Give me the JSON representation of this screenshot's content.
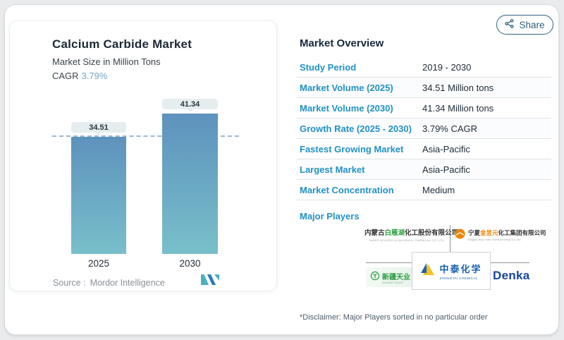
{
  "chart_card": {
    "title": "Calcium Carbide Market",
    "subtitle": "Market Size in Million Tons",
    "cagr_label": "CAGR",
    "cagr_value": "3.79%",
    "source_label": "Source :",
    "source_value": "Mordor Intelligence"
  },
  "chart_data": {
    "type": "bar",
    "categories": [
      "2025",
      "2030"
    ],
    "values": [
      34.51,
      41.34
    ],
    "title": "Calcium Carbide Market",
    "subtitle": "Market Size in Million Tons",
    "cagr": "3.79%",
    "ylim": [
      0,
      45
    ],
    "grid": false,
    "data_labels": [
      "34.51",
      "41.34"
    ],
    "annotation": "dashed reference line at 2025 value (34.51)",
    "bar_gradient_top": "#5d92bd",
    "bar_gradient_bottom": "#79bfca"
  },
  "share": {
    "label": "Share"
  },
  "overview": {
    "title": "Market Overview",
    "rows": [
      {
        "label": "Study Period",
        "value": "2019 - 2030"
      },
      {
        "label": "Market Volume (2025)",
        "value": "34.51 Million tons"
      },
      {
        "label": "Market Volume (2030)",
        "value": "41.34 Million tons"
      },
      {
        "label": "Growth Rate (2025 - 2030)",
        "value": "3.79% CAGR"
      },
      {
        "label": "Fastest Growing Market",
        "value": "Asia-Pacific"
      },
      {
        "label": "Largest Market",
        "value": "Asia-Pacific"
      },
      {
        "label": "Market Concentration",
        "value": "Medium"
      }
    ],
    "major_players_label": "Major Players",
    "disclaimer": "*Disclaimer: Major Players sorted in no particular order"
  },
  "players": {
    "baiyanhu": {
      "prefix": "内蒙古",
      "highlight": "白雁湖",
      "suffix": "化工股份有限公司",
      "en": "INNER MONGOLIA BAIYANHU CHEMICAL CO.,LTD"
    },
    "jinyuyuan": {
      "prefix": "宁夏",
      "highlight": "金昱元",
      "suffix": "化工集团有限公司",
      "en": "Ningxia Jinyu Yuan Chemical Group Co.,Ltd."
    },
    "tianye": {
      "cn": "新疆天业",
      "en": "XINJIANG TIANYE"
    },
    "zhongtai": {
      "cn": "中泰化学",
      "en": "ZHONGTAI CHEMICAL"
    },
    "denka": {
      "name": "Denka"
    }
  },
  "colors": {
    "accent_blue": "#2191c4",
    "navy": "#18273a",
    "cagr_blue": "#73a5ca",
    "bar_top": "#5d92bd",
    "bar_bottom": "#79bfca",
    "share_teal": "#2f6180"
  }
}
